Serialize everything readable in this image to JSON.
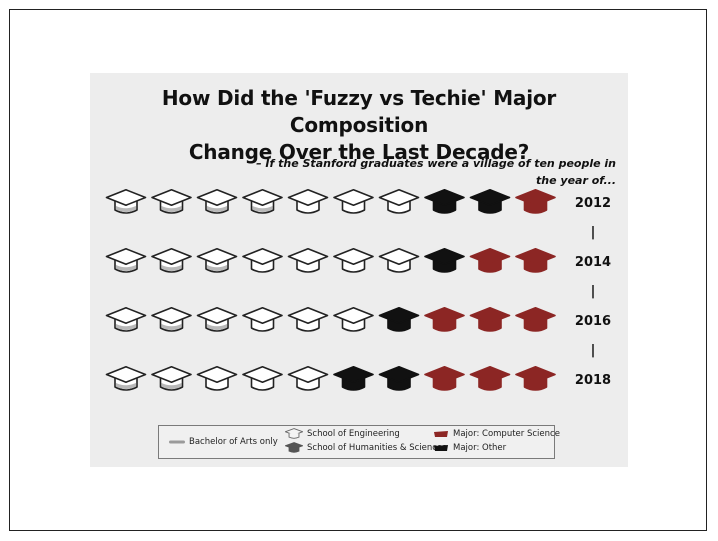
{
  "chart_data": {
    "type": "pictogram",
    "title": "How Did the 'Fuzzy vs Techie' Major Composition\nChange Over the Last Decade?",
    "subtitle": "– If the Stanford graduates were a village of ten people in the year of...",
    "rows": [
      {
        "year": "2012",
        "icons": [
          "ba_eng",
          "ba_eng",
          "ba_eng",
          "ba_eng",
          "eng",
          "eng",
          "eng",
          "other",
          "other",
          "cs"
        ]
      },
      {
        "year": "2014",
        "icons": [
          "ba_eng",
          "ba_eng",
          "ba_eng",
          "eng",
          "eng",
          "eng",
          "eng",
          "other",
          "cs",
          "cs"
        ]
      },
      {
        "year": "2016",
        "icons": [
          "ba_eng",
          "ba_eng",
          "ba_eng",
          "eng",
          "eng",
          "eng",
          "other",
          "cs",
          "cs",
          "cs"
        ]
      },
      {
        "year": "2018",
        "icons": [
          "ba_eng",
          "ba_eng",
          "eng",
          "eng",
          "eng",
          "other",
          "other",
          "cs",
          "cs",
          "cs"
        ]
      }
    ],
    "year_separator": "|",
    "legend": {
      "ba": "Bachelor of Arts only",
      "engineering": "School of Engineering",
      "hs": "School of Humanities & Sciences",
      "cs": "Major: Computer Science",
      "other": "Major: Other"
    },
    "colors": {
      "cs": "#8c2624",
      "other": "#111111",
      "outline": "#222222",
      "ba_band": "#b8b8b8",
      "panel": "#ededed"
    }
  }
}
